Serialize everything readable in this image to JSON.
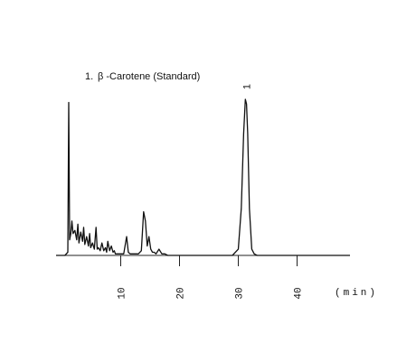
{
  "chart_data": {
    "type": "line",
    "title_number": "1.",
    "title": "β -Carotene (Standard)",
    "xlabel": "(min)",
    "ylabel": "",
    "xlim": [
      -1,
      49
    ],
    "ylim": [
      0,
      100
    ],
    "grid": false,
    "legend": "none",
    "x_ticks": [
      10,
      20,
      30,
      40
    ],
    "x_tick_labels": [
      "10",
      "20",
      "30",
      "40"
    ],
    "peak_labels": [
      {
        "x": 31.4,
        "y": 100,
        "text": "1"
      }
    ],
    "series": [
      {
        "x": [
          -1,
          0.5,
          1.0,
          1.15,
          1.3,
          1.5,
          1.7,
          1.9,
          2.2,
          2.5,
          2.7,
          2.9,
          3.2,
          3.5,
          3.7,
          3.9,
          4.2,
          4.5,
          4.7,
          4.9,
          5.2,
          5.5,
          5.8,
          6.0,
          6.2,
          6.5,
          6.8,
          7.1,
          7.4,
          7.6,
          7.8,
          8.1,
          8.4,
          8.7,
          8.9,
          9.1,
          9.4,
          9.7,
          10.0,
          10.5,
          11.0,
          11.3,
          11.6,
          12.0,
          12.5,
          13.0,
          13.5,
          13.9,
          14.2,
          14.5,
          14.8,
          15.1,
          15.4,
          15.7,
          16.0,
          16.5,
          17.0,
          17.5,
          18.0,
          19.0,
          22.0,
          26.0,
          29.0,
          30.0,
          30.5,
          30.9,
          31.2,
          31.4,
          31.6,
          31.9,
          32.3,
          32.7,
          33.2,
          34.0,
          36.0,
          49.0
        ],
        "y": [
          0,
          0,
          2,
          98,
          10,
          14,
          22,
          14,
          16,
          10,
          20,
          8,
          15,
          9,
          18,
          7,
          12,
          6,
          14,
          5,
          8,
          4,
          18,
          4,
          5,
          3,
          8,
          3,
          5,
          2,
          9,
          3,
          6,
          2,
          3,
          1,
          1,
          1,
          1,
          1,
          12,
          2,
          1,
          1,
          1,
          1,
          3,
          28,
          22,
          6,
          12,
          4,
          2,
          2,
          1,
          4,
          1,
          1,
          0,
          0,
          0,
          0,
          0,
          4,
          30,
          78,
          100,
          97,
          78,
          30,
          4,
          1,
          0,
          0,
          0,
          0
        ]
      }
    ]
  }
}
